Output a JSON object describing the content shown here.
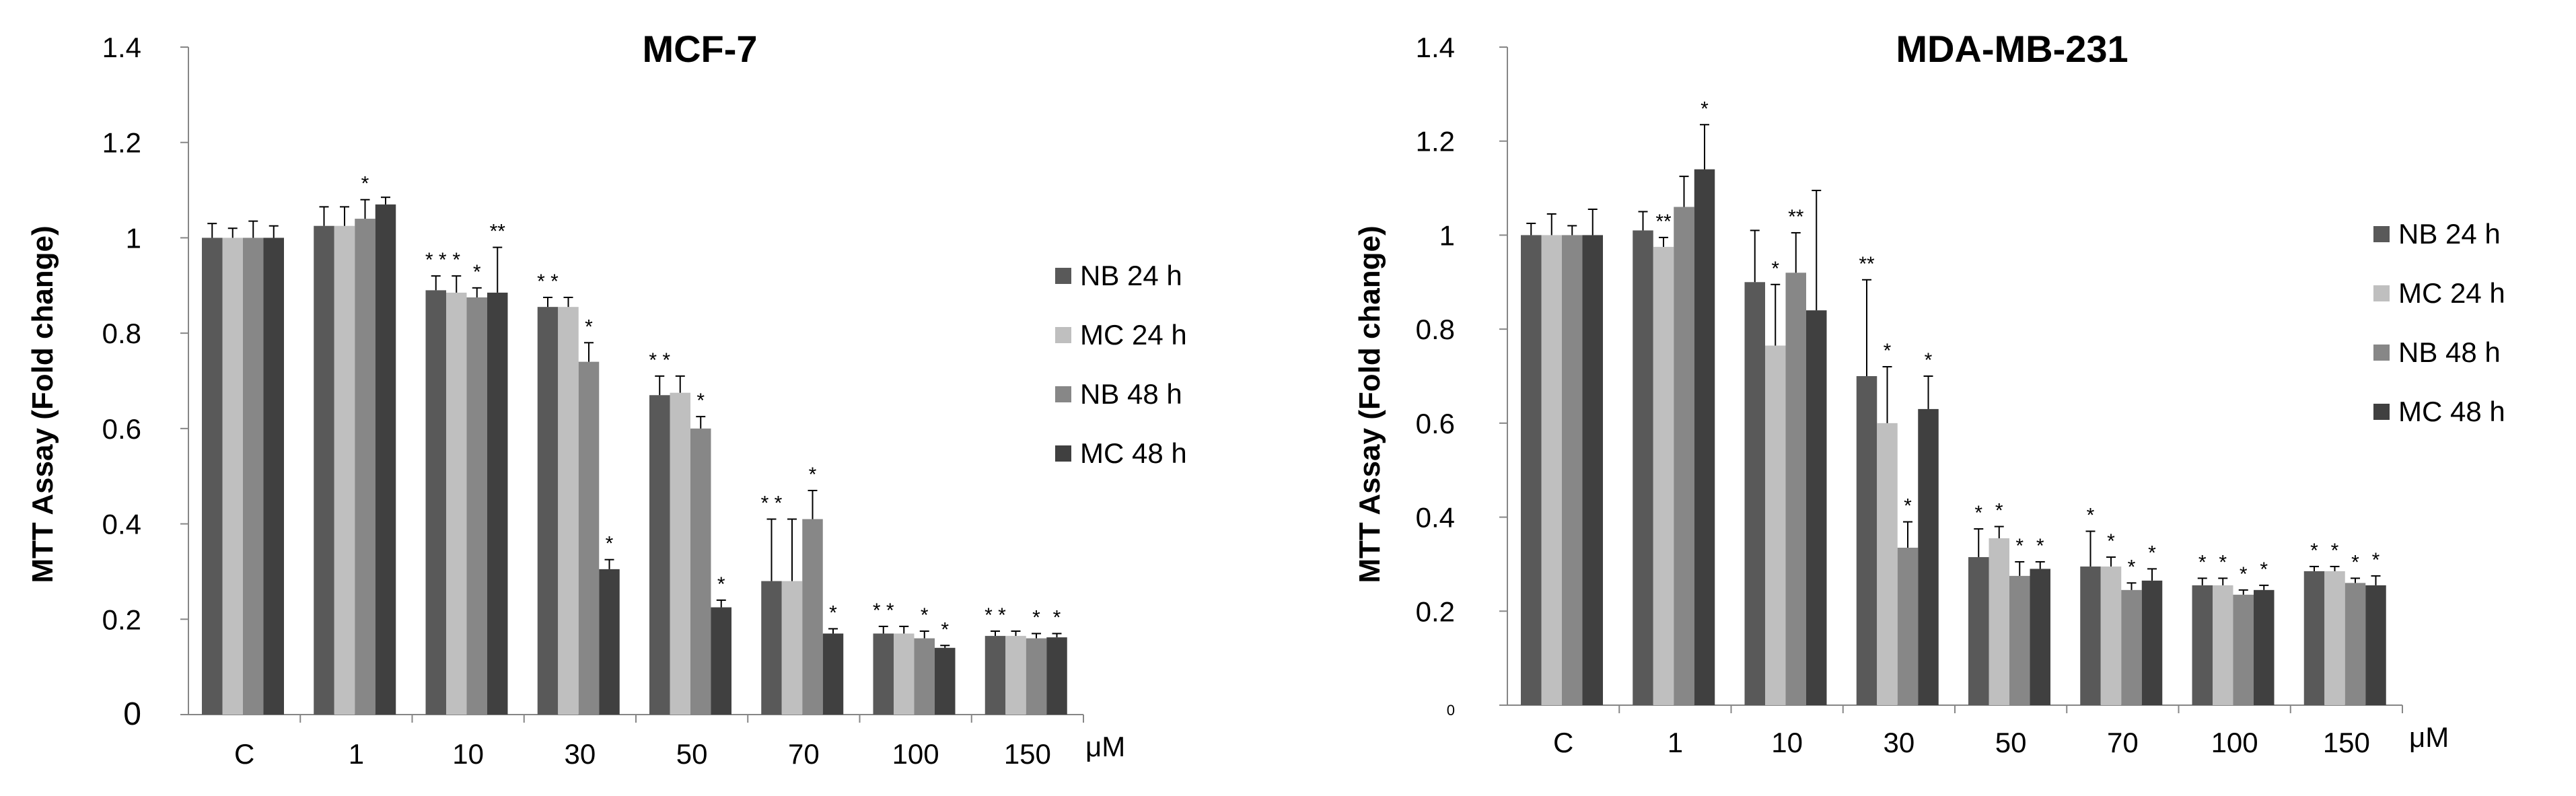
{
  "figure": {
    "colors": {
      "NB 24 h": "#595959",
      "MC 24 h": "#bfbfbf",
      "NB 48 h": "#878787",
      "MC 48 h": "#404040"
    }
  },
  "chart_data": [
    {
      "type": "bar",
      "title": "MCF-7",
      "xlabel": "",
      "ylabel": "MTT Assay (Fold change)",
      "unit_label": "μM",
      "categories": [
        "C",
        "1",
        "10",
        "30",
        "50",
        "70",
        "100",
        "150"
      ],
      "ylim": [
        0,
        1.4
      ],
      "yticks": [
        "0",
        "0.2",
        "0.4",
        "0.6",
        "0.8",
        "1",
        "1.2",
        "1.4"
      ],
      "series": [
        {
          "name": "NB 24 h",
          "values": [
            1.0,
            1.025,
            0.89,
            0.855,
            0.67,
            0.28,
            0.17,
            0.165
          ],
          "errors": [
            0.03,
            0.04,
            0.03,
            0.02,
            0.04,
            0.13,
            0.015,
            0.01
          ]
        },
        {
          "name": "MC 24 h",
          "values": [
            1.0,
            1.025,
            0.885,
            0.855,
            0.675,
            0.28,
            0.17,
            0.165
          ],
          "errors": [
            0.02,
            0.04,
            0.035,
            0.02,
            0.035,
            0.13,
            0.015,
            0.01
          ]
        },
        {
          "name": "NB 48 h",
          "values": [
            1.0,
            1.04,
            0.875,
            0.74,
            0.6,
            0.41,
            0.16,
            0.16
          ],
          "errors": [
            0.035,
            0.04,
            0.02,
            0.04,
            0.025,
            0.06,
            0.015,
            0.01
          ]
        },
        {
          "name": "MC 48 h",
          "values": [
            1.0,
            1.07,
            0.885,
            0.305,
            0.225,
            0.17,
            0.14,
            0.162
          ],
          "errors": [
            0.025,
            0.015,
            0.095,
            0.02,
            0.015,
            0.01,
            0.005,
            0.008
          ]
        }
      ],
      "significance": [
        [
          "",
          "",
          "",
          ""
        ],
        [
          "",
          "",
          "*",
          ""
        ],
        [
          "* *",
          "*",
          "*",
          "**"
        ],
        [
          "* *",
          "",
          "*",
          "*"
        ],
        [
          "* *",
          "",
          "*",
          "*"
        ],
        [
          "* *",
          "",
          "*",
          "*"
        ],
        [
          "* *",
          "",
          "*",
          "*"
        ],
        [
          "* *",
          "",
          "*",
          "*"
        ]
      ],
      "legend": [
        "NB 24 h",
        "MC 24 h",
        "NB 48 h",
        "MC 48 h"
      ]
    },
    {
      "type": "bar",
      "title": "MDA-MB-231",
      "xlabel": "",
      "ylabel": "MTT Assay (Fold change)",
      "unit_label": "μM",
      "categories": [
        "C",
        "1",
        "10",
        "30",
        "50",
        "70",
        "100",
        "150"
      ],
      "ylim": [
        0,
        1.4
      ],
      "yticks": [
        "0",
        "0.2",
        "0.4",
        "0.6",
        "0.8",
        "1",
        "1.2",
        "1.4"
      ],
      "series": [
        {
          "name": "NB 24 h",
          "values": [
            1.0,
            1.01,
            0.9,
            0.7,
            0.315,
            0.295,
            0.255,
            0.285
          ],
          "errors": [
            0.025,
            0.04,
            0.11,
            0.205,
            0.06,
            0.075,
            0.015,
            0.01
          ]
        },
        {
          "name": "MC 24 h",
          "values": [
            1.0,
            0.975,
            0.765,
            0.6,
            0.355,
            0.295,
            0.255,
            0.285
          ],
          "errors": [
            0.045,
            0.02,
            0.13,
            0.12,
            0.025,
            0.02,
            0.015,
            0.01
          ]
        },
        {
          "name": "NB 48 h",
          "values": [
            1.0,
            1.06,
            0.92,
            0.335,
            0.275,
            0.245,
            0.235,
            0.26
          ],
          "errors": [
            0.02,
            0.065,
            0.085,
            0.055,
            0.03,
            0.015,
            0.01,
            0.01
          ]
        },
        {
          "name": "MC 48 h",
          "values": [
            1.0,
            1.14,
            0.84,
            0.63,
            0.29,
            0.265,
            0.245,
            0.255
          ],
          "errors": [
            0.055,
            0.095,
            0.255,
            0.07,
            0.015,
            0.025,
            0.01,
            0.02
          ]
        }
      ],
      "significance": [
        [
          "",
          "",
          "",
          ""
        ],
        [
          "",
          "**",
          "",
          "*"
        ],
        [
          "",
          "*",
          "**",
          ""
        ],
        [
          "**",
          "*",
          "*",
          "*"
        ],
        [
          "*",
          "*",
          "*",
          "*"
        ],
        [
          "*",
          "*",
          "*",
          "*"
        ],
        [
          "*",
          "*",
          "*",
          "*"
        ],
        [
          "*",
          "*",
          "*",
          "*"
        ]
      ],
      "legend": [
        "NB 24 h",
        "MC 24 h",
        "NB 48 h",
        "MC 48 h"
      ]
    }
  ]
}
